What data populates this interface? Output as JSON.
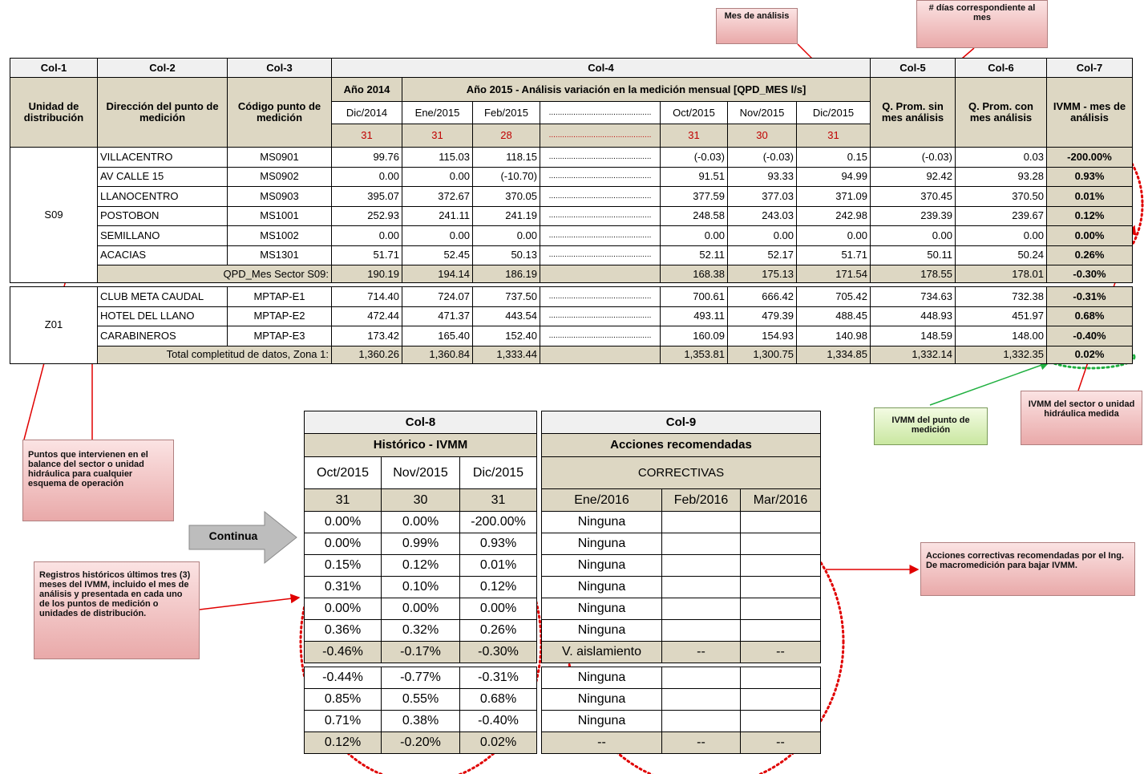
{
  "callouts": {
    "mes_analisis": "Mes de análisis",
    "dias_mes": "# días correspondiente al mes",
    "puntos": "Puntos que intervienen en el balance del sector o unidad hidráulica para cualquier esquema de operación",
    "registros": "Registros históricos últimos tres (3) meses del IVMM, incluido el mes de análisis y presentada en cada uno de los puntos de medición o unidades de distribución.",
    "ivmm_punto": "IVMM del punto de medición",
    "ivmm_sector": "IVMM del sector o unidad hidráulica medida",
    "acciones": "Acciones correctivas recomendadas por el Ing. De macromedición para bajar IVMM.",
    "continua": "Continua"
  },
  "main_table": {
    "col_headers": [
      "Col-1",
      "Col-2",
      "Col-3",
      "Col-4",
      "Col-5",
      "Col-6",
      "Col-7"
    ],
    "h_unidad": "Unidad de distribución",
    "h_direccion": "Dirección del punto de medición",
    "h_codigo": "Código punto de medición",
    "h_anio2014": "Año 2014",
    "h_anio2015": "Año 2015 - Análisis variación en la medición mensual [QPD_MES l/s]",
    "months": [
      "Dic/2014",
      "Ene/2015",
      "Feb/2015",
      "Oct/2015",
      "Nov/2015",
      "Dic/2015"
    ],
    "days": [
      "31",
      "31",
      "28",
      "31",
      "30",
      "31"
    ],
    "dots": "..............................................",
    "h_qsin": "Q. Prom. sin mes análisis",
    "h_qcon": "Q. Prom. con mes análisis",
    "h_ivmm": "IVMM - mes de análisis",
    "groups": [
      {
        "unit": "S09",
        "rows": [
          [
            "VILLACENTRO",
            "MS0901",
            "99.76",
            "115.03",
            "118.15",
            "(-0.03)",
            "(-0.03)",
            "0.15",
            "(-0.03)",
            "0.03",
            "-200.00%"
          ],
          [
            "AV CALLE 15",
            "MS0902",
            "0.00",
            "0.00",
            "(-10.70)",
            "91.51",
            "93.33",
            "94.99",
            "92.42",
            "93.28",
            "0.93%"
          ],
          [
            "LLANOCENTRO",
            "MS0903",
            "395.07",
            "372.67",
            "370.05",
            "377.59",
            "377.03",
            "371.09",
            "370.45",
            "370.50",
            "0.01%"
          ],
          [
            "POSTOBON",
            "MS1001",
            "252.93",
            "241.11",
            "241.19",
            "248.58",
            "243.03",
            "242.98",
            "239.39",
            "239.67",
            "0.12%"
          ],
          [
            "SEMILLANO",
            "MS1002",
            "0.00",
            "0.00",
            "0.00",
            "0.00",
            "0.00",
            "0.00",
            "0.00",
            "0.00",
            "0.00%"
          ],
          [
            "ACACIAS",
            "MS1301",
            "51.71",
            "52.45",
            "50.13",
            "52.11",
            "52.17",
            "51.71",
            "50.11",
            "50.24",
            "0.26%"
          ]
        ],
        "total": {
          "label": "QPD_Mes Sector S09:",
          "values": [
            "190.19",
            "194.14",
            "186.19",
            "168.38",
            "175.13",
            "171.54",
            "178.55",
            "178.01",
            "-0.30%"
          ]
        }
      },
      {
        "unit": "Z01",
        "rows": [
          [
            "CLUB META CAUDAL",
            "MPTAP-E1",
            "714.40",
            "724.07",
            "737.50",
            "700.61",
            "666.42",
            "705.42",
            "734.63",
            "732.38",
            "-0.31%"
          ],
          [
            "HOTEL DEL LLANO",
            "MPTAP-E2",
            "472.44",
            "471.37",
            "443.54",
            "493.11",
            "479.39",
            "488.45",
            "448.93",
            "451.97",
            "0.68%"
          ],
          [
            "CARABINEROS",
            "MPTAP-E3",
            "173.42",
            "165.40",
            "152.40",
            "160.09",
            "154.93",
            "140.98",
            "148.59",
            "148.00",
            "-0.40%"
          ]
        ],
        "total": {
          "label": "Total completitud de datos, Zona 1:",
          "values": [
            "1,360.26",
            "1,360.84",
            "1,333.44",
            "1,353.81",
            "1,300.75",
            "1,334.85",
            "1,332.14",
            "1,332.35",
            "0.02%"
          ]
        }
      }
    ]
  },
  "history_table": {
    "col_headers": [
      "Col-8",
      "Col-9"
    ],
    "h_hist": "Histórico - IVMM",
    "h_acc": "Acciones recomendadas",
    "h_correctivas": "CORRECTIVAS",
    "months": [
      "Oct/2015",
      "Nov/2015",
      "Dic/2015"
    ],
    "days": [
      "31",
      "30",
      "31"
    ],
    "action_months": [
      "Ene/2016",
      "Feb/2016",
      "Mar/2016"
    ],
    "groups": [
      [
        {
          "hist": [
            "0.00%",
            "0.00%",
            "-200.00%"
          ],
          "actions": [
            "Ninguna"
          ]
        },
        {
          "hist": [
            "0.00%",
            "0.99%",
            "0.93%"
          ],
          "actions": [
            "Ninguna"
          ]
        },
        {
          "hist": [
            "0.15%",
            "0.12%",
            "0.01%"
          ],
          "actions": [
            "Ninguna"
          ]
        },
        {
          "hist": [
            "0.31%",
            "0.10%",
            "0.12%"
          ],
          "actions": [
            "Ninguna"
          ]
        },
        {
          "hist": [
            "0.00%",
            "0.00%",
            "0.00%"
          ],
          "actions": [
            "Ninguna"
          ]
        },
        {
          "hist": [
            "0.36%",
            "0.32%",
            "0.26%"
          ],
          "actions": [
            "Ninguna"
          ]
        },
        {
          "hist": [
            "-0.46%",
            "-0.17%",
            "-0.30%"
          ],
          "actions": [
            "V. aislamiento",
            "--",
            "--"
          ],
          "total": true
        }
      ],
      [
        {
          "hist": [
            "-0.44%",
            "-0.77%",
            "-0.31%"
          ],
          "actions": [
            "Ninguna"
          ]
        },
        {
          "hist": [
            "0.85%",
            "0.55%",
            "0.68%"
          ],
          "actions": [
            "Ninguna"
          ]
        },
        {
          "hist": [
            "0.71%",
            "0.38%",
            "-0.40%"
          ],
          "actions": [
            "Ninguna"
          ]
        },
        {
          "hist": [
            "0.12%",
            "-0.20%",
            "0.02%"
          ],
          "actions": [
            "--",
            "--",
            "--"
          ],
          "total": true
        }
      ]
    ]
  }
}
